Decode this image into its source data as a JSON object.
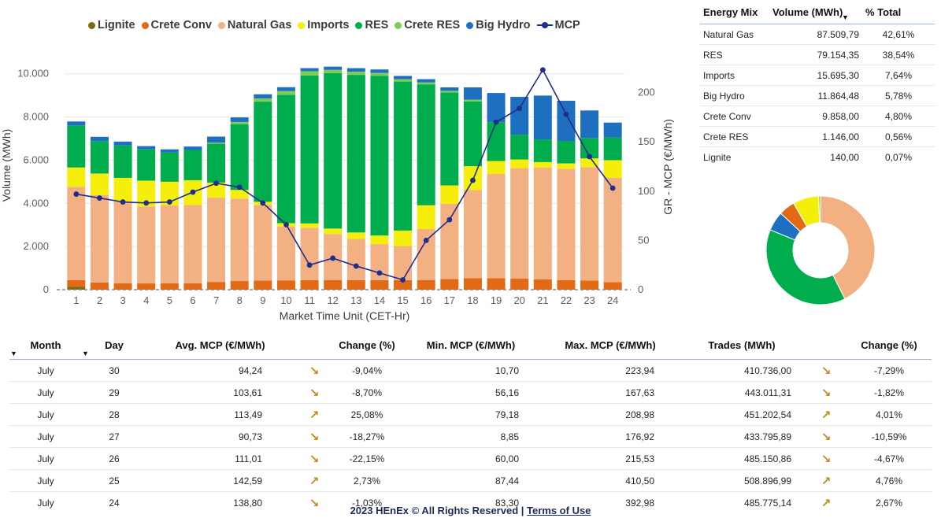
{
  "chart_data": [
    {
      "type": "bar",
      "stacked": true,
      "xlabel": "Market Time Unit (CET-Hr)",
      "ylabel": "Volume (MWh)",
      "y2label": "GR - MCP (€/MWh)",
      "ylim": [
        0,
        10500
      ],
      "y2lim": [
        0,
        230
      ],
      "yticks": [
        "0",
        "2.000",
        "4.000",
        "6.000",
        "8.000",
        "10.000"
      ],
      "y2ticks": [
        "0",
        "50",
        "100",
        "150",
        "200"
      ],
      "legend_position": "top",
      "categories": [
        "1",
        "2",
        "3",
        "4",
        "5",
        "6",
        "7",
        "8",
        "9",
        "10",
        "11",
        "12",
        "13",
        "14",
        "15",
        "16",
        "17",
        "18",
        "19",
        "20",
        "21",
        "22",
        "23",
        "24"
      ],
      "series": [
        {
          "name": "Lignite",
          "color": "#7a6a12",
          "values": [
            140,
            0,
            0,
            0,
            0,
            0,
            0,
            0,
            0,
            0,
            0,
            0,
            0,
            0,
            0,
            0,
            0,
            0,
            0,
            0,
            0,
            0,
            0,
            0
          ]
        },
        {
          "name": "Crete Conv",
          "color": "#e36a15",
          "values": [
            300,
            330,
            300,
            290,
            300,
            300,
            360,
            400,
            420,
            430,
            440,
            450,
            440,
            440,
            440,
            450,
            490,
            530,
            530,
            510,
            480,
            440,
            420,
            350
          ]
        },
        {
          "name": "Natural Gas",
          "color": "#f2b083",
          "values": [
            4320,
            4050,
            3780,
            3560,
            3600,
            3620,
            3900,
            3820,
            3500,
            2500,
            2430,
            2130,
            1910,
            1670,
            1580,
            2360,
            3490,
            4090,
            4830,
            5120,
            5180,
            5160,
            5260,
            4830
          ]
        },
        {
          "name": "Imports",
          "color": "#f5ee0a",
          "values": [
            900,
            1000,
            1100,
            1200,
            1100,
            1150,
            700,
            400,
            150,
            150,
            200,
            250,
            300,
            400,
            720,
            1100,
            850,
            1100,
            600,
            400,
            250,
            250,
            400,
            820
          ]
        },
        {
          "name": "RES",
          "color": "#00ad4c",
          "values": [
            1950,
            1500,
            1500,
            1450,
            1350,
            1400,
            1800,
            3050,
            4640,
            5950,
            6850,
            7200,
            7300,
            7400,
            6900,
            5600,
            4300,
            3000,
            1800,
            1150,
            1050,
            1040,
            950,
            1050
          ]
        },
        {
          "name": "Crete RES",
          "color": "#7dcc55",
          "values": [
            0,
            0,
            0,
            0,
            0,
            0,
            50,
            100,
            150,
            170,
            200,
            150,
            150,
            130,
            110,
            90,
            80,
            80,
            0,
            0,
            0,
            0,
            0,
            0
          ]
        },
        {
          "name": "Big Hydro",
          "color": "#1e6fbf",
          "values": [
            180,
            200,
            180,
            150,
            150,
            160,
            280,
            210,
            190,
            180,
            140,
            150,
            160,
            160,
            150,
            150,
            160,
            570,
            1350,
            1750,
            2030,
            1860,
            1270,
            690
          ]
        }
      ],
      "line_series": {
        "name": "MCP",
        "color": "#1f2d8c",
        "axis": "secondary",
        "values": [
          97,
          93,
          89,
          88,
          89,
          99,
          108,
          104,
          88,
          66,
          25,
          32,
          24,
          17,
          10,
          50,
          71,
          111,
          170,
          184,
          223,
          178,
          135,
          103
        ]
      }
    },
    {
      "type": "pie",
      "donut": true,
      "slices": [
        {
          "name": "Natural Gas",
          "value": 87509.79,
          "color": "#f2b083"
        },
        {
          "name": "RES",
          "value": 79154.35,
          "color": "#00ad4c"
        },
        {
          "name": "Big Hydro",
          "value": 11864.48,
          "color": "#1e6fbf"
        },
        {
          "name": "Crete Conv",
          "value": 9858.0,
          "color": "#e36a15"
        },
        {
          "name": "Lignite",
          "value": 140.0,
          "color": "#7a6a12"
        },
        {
          "name": "Imports",
          "value": 15695.3,
          "color": "#f5ee0a"
        },
        {
          "name": "Crete RES",
          "value": 1146.0,
          "color": "#7dcc55"
        }
      ]
    }
  ],
  "legend": [
    {
      "name": "Lignite",
      "color": "#7a6a12",
      "kind": "dot"
    },
    {
      "name": "Crete Conv",
      "color": "#e36a15",
      "kind": "dot"
    },
    {
      "name": "Natural Gas",
      "color": "#f2b083",
      "kind": "dot"
    },
    {
      "name": "Imports",
      "color": "#f5ee0a",
      "kind": "dot"
    },
    {
      "name": "RES",
      "color": "#00ad4c",
      "kind": "dot"
    },
    {
      "name": "Crete RES",
      "color": "#7dcc55",
      "kind": "dot"
    },
    {
      "name": "Big Hydro",
      "color": "#1e6fbf",
      "kind": "dot"
    },
    {
      "name": "MCP",
      "color": "#1f2d8c",
      "kind": "line"
    }
  ],
  "mix_table": {
    "headers": {
      "mix": "Energy Mix",
      "volume": "Volume (MWh)",
      "pct": "% Total"
    },
    "sort_icon": "sort-descending-icon",
    "rows": [
      {
        "mix": "Natural Gas",
        "volume": "87.509,79",
        "pct": "42,61%"
      },
      {
        "mix": "RES",
        "volume": "79.154,35",
        "pct": "38,54%"
      },
      {
        "mix": "Imports",
        "volume": "15.695,30",
        "pct": "7,64%"
      },
      {
        "mix": "Big Hydro",
        "volume": "11.864,48",
        "pct": "5,78%"
      },
      {
        "mix": "Crete Conv",
        "volume": "9.858,00",
        "pct": "4,80%"
      },
      {
        "mix": "Crete RES",
        "volume": "1.146,00",
        "pct": "0,56%"
      },
      {
        "mix": "Lignite",
        "volume": "140,00",
        "pct": "0,07%"
      }
    ]
  },
  "daily_table": {
    "headers": {
      "month": "Month",
      "day": "Day",
      "avg": "Avg. MCP (€/MWh)",
      "change": "Change (%)",
      "min": "Min. MCP (€/MWh)",
      "max": "Max. MCP (€/MWh)",
      "trades": "Trades (MWh)",
      "change2": "Change (%)"
    },
    "arrow_color": "#c08b1a",
    "rows": [
      {
        "month": "July",
        "day": "30",
        "avg": "94,24",
        "dir": "down",
        "change": "-9,04%",
        "min": "10,70",
        "max": "223,94",
        "trades": "410.736,00",
        "dir2": "down",
        "change2": "-7,29%"
      },
      {
        "month": "July",
        "day": "29",
        "avg": "103,61",
        "dir": "down",
        "change": "-8,70%",
        "min": "56,16",
        "max": "167,63",
        "trades": "443.011,31",
        "dir2": "down",
        "change2": "-1,82%"
      },
      {
        "month": "July",
        "day": "28",
        "avg": "113,49",
        "dir": "up",
        "change": "25,08%",
        "min": "79,18",
        "max": "208,98",
        "trades": "451.202,54",
        "dir2": "up",
        "change2": "4,01%"
      },
      {
        "month": "July",
        "day": "27",
        "avg": "90,73",
        "dir": "down",
        "change": "-18,27%",
        "min": "8,85",
        "max": "176,92",
        "trades": "433.795,89",
        "dir2": "down",
        "change2": "-10,59%"
      },
      {
        "month": "July",
        "day": "26",
        "avg": "111,01",
        "dir": "down",
        "change": "-22,15%",
        "min": "60,00",
        "max": "215,53",
        "trades": "485.150,86",
        "dir2": "down",
        "change2": "-4,67%"
      },
      {
        "month": "July",
        "day": "25",
        "avg": "142,59",
        "dir": "up",
        "change": "2,73%",
        "min": "87,44",
        "max": "410,50",
        "trades": "508.896,99",
        "dir2": "up",
        "change2": "4,76%"
      },
      {
        "month": "July",
        "day": "24",
        "avg": "138,80",
        "dir": "down",
        "change": "-1,03%",
        "min": "83,30",
        "max": "392,98",
        "trades": "485.775,14",
        "dir2": "up",
        "change2": "2,67%"
      }
    ]
  },
  "footer": {
    "text": "2023 HEnEx © All Rights Reserved | ",
    "link": "Terms of Use"
  }
}
